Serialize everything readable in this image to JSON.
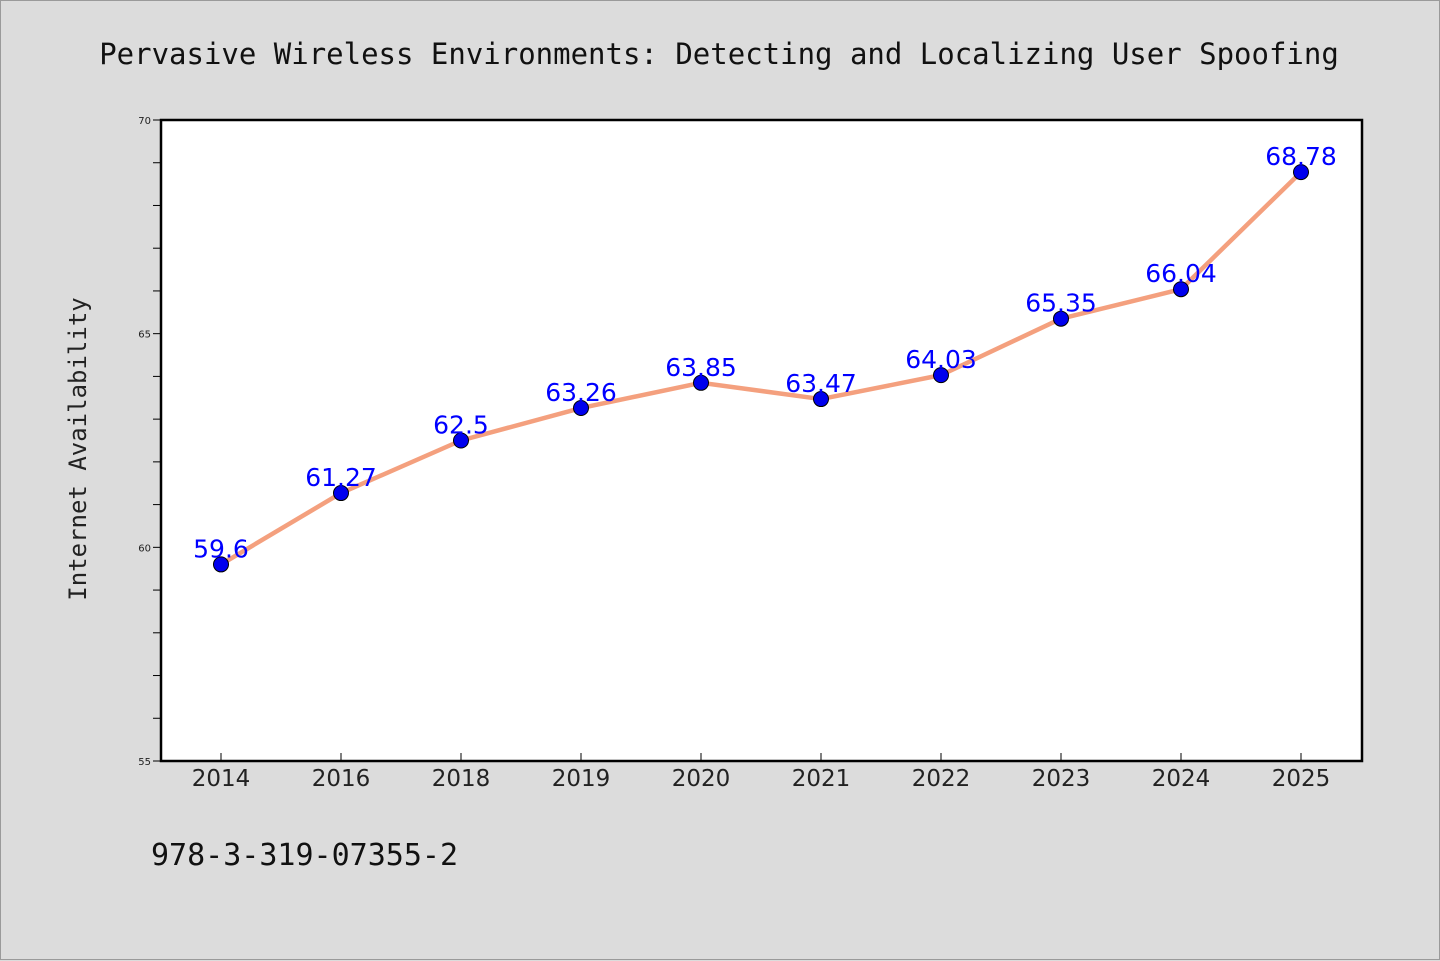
{
  "chart_data": {
    "type": "line",
    "title": "Pervasive Wireless Environments: Detecting and Localizing User Spoofing",
    "xlabel": "",
    "ylabel": "Internet Availability",
    "categories": [
      "2014",
      "2016",
      "2018",
      "2019",
      "2020",
      "2021",
      "2022",
      "2023",
      "2024",
      "2025"
    ],
    "series": [
      {
        "values": [
          59.6,
          61.27,
          62.5,
          63.26,
          63.85,
          63.47,
          64.03,
          65.35,
          66.04,
          68.78
        ],
        "line_color": "#f4a07e",
        "marker_color": "#0000ee",
        "label_color": "#0000ff"
      }
    ],
    "data_labels": [
      "59.6",
      "61.27",
      "62.5",
      "63.26",
      "63.85",
      "63.47",
      "64.03",
      "65.35",
      "66.04",
      "68.78"
    ],
    "ylim": [
      55,
      70
    ],
    "yticks": [
      55,
      60,
      65,
      70
    ],
    "grid": false,
    "legend": "none"
  },
  "footer": {
    "isbn": "978-3-319-07355-2"
  }
}
